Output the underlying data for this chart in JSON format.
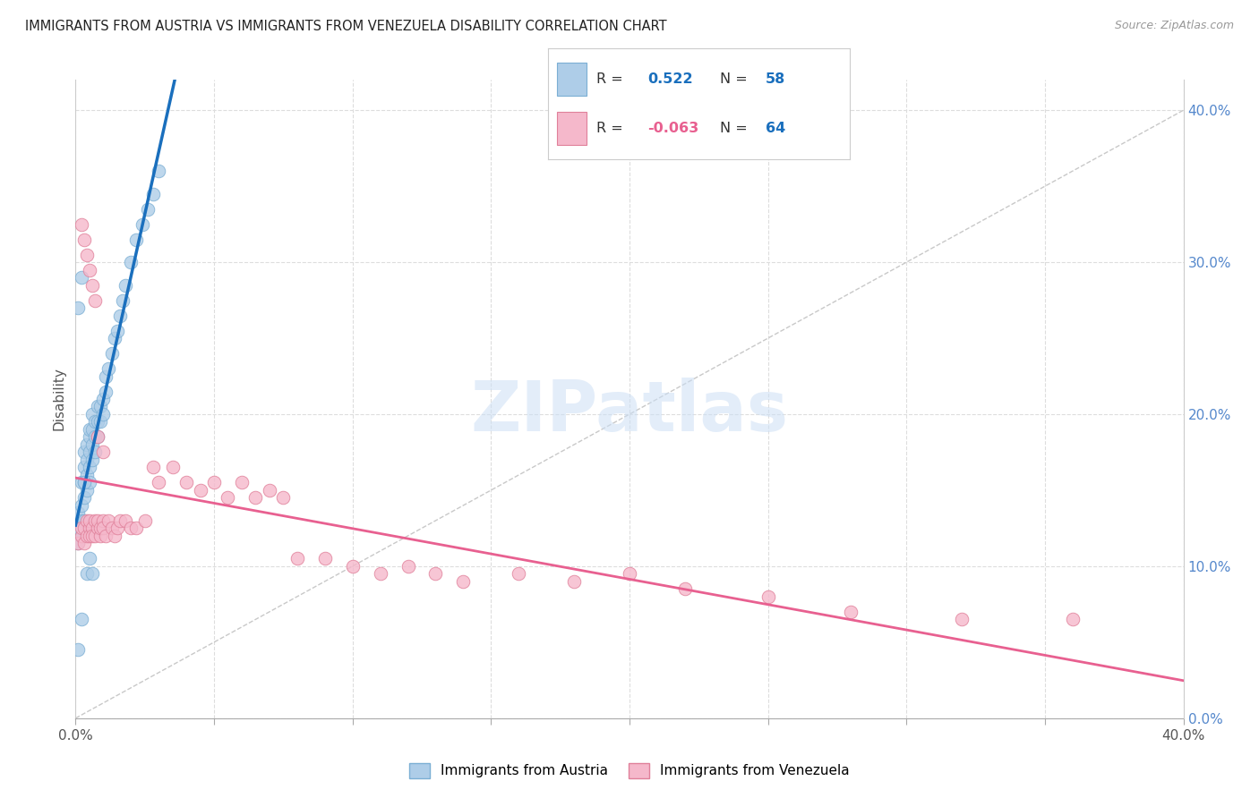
{
  "title": "IMMIGRANTS FROM AUSTRIA VS IMMIGRANTS FROM VENEZUELA DISABILITY CORRELATION CHART",
  "source": "Source: ZipAtlas.com",
  "ylabel": "Disability",
  "xlim": [
    0.0,
    0.4
  ],
  "ylim": [
    0.0,
    0.42
  ],
  "xtick_positions": [
    0.0,
    0.05,
    0.1,
    0.15,
    0.2,
    0.25,
    0.3,
    0.35,
    0.4
  ],
  "xtick_labels": [
    "0.0%",
    "",
    "",
    "",
    "",
    "",
    "",
    "",
    "40.0%"
  ],
  "ytick_right_positions": [
    0.0,
    0.1,
    0.2,
    0.3,
    0.4
  ],
  "ytick_right_labels": [
    "0.0%",
    "10.0%",
    "20.0%",
    "30.0%",
    "40.0%"
  ],
  "austria_R": 0.522,
  "austria_N": 58,
  "venezuela_R": -0.063,
  "venezuela_N": 64,
  "austria_color": "#aecde8",
  "austria_edge": "#7bafd4",
  "venezuela_color": "#f5b8cb",
  "venezuela_edge": "#e0809a",
  "austria_line_color": "#1a6fbd",
  "venezuela_line_color": "#e86090",
  "ref_line_color": "#bbbbbb",
  "background_color": "#ffffff",
  "grid_color": "#dddddd",
  "austria_x": [
    0.001,
    0.001,
    0.001,
    0.002,
    0.002,
    0.002,
    0.002,
    0.003,
    0.003,
    0.003,
    0.003,
    0.003,
    0.004,
    0.004,
    0.004,
    0.004,
    0.005,
    0.005,
    0.005,
    0.005,
    0.005,
    0.006,
    0.006,
    0.006,
    0.006,
    0.007,
    0.007,
    0.007,
    0.008,
    0.008,
    0.008,
    0.009,
    0.009,
    0.01,
    0.01,
    0.011,
    0.011,
    0.012,
    0.013,
    0.014,
    0.015,
    0.016,
    0.017,
    0.018,
    0.02,
    0.022,
    0.024,
    0.026,
    0.028,
    0.03,
    0.001,
    0.002,
    0.003,
    0.004,
    0.005,
    0.006,
    0.002,
    0.001
  ],
  "austria_y": [
    0.115,
    0.125,
    0.135,
    0.12,
    0.13,
    0.14,
    0.155,
    0.13,
    0.145,
    0.155,
    0.165,
    0.175,
    0.15,
    0.16,
    0.17,
    0.18,
    0.155,
    0.165,
    0.175,
    0.185,
    0.19,
    0.17,
    0.18,
    0.19,
    0.2,
    0.175,
    0.185,
    0.195,
    0.185,
    0.195,
    0.205,
    0.195,
    0.205,
    0.2,
    0.21,
    0.215,
    0.225,
    0.23,
    0.24,
    0.25,
    0.255,
    0.265,
    0.275,
    0.285,
    0.3,
    0.315,
    0.325,
    0.335,
    0.345,
    0.36,
    0.27,
    0.29,
    0.155,
    0.095,
    0.105,
    0.095,
    0.065,
    0.045
  ],
  "venezuela_x": [
    0.001,
    0.002,
    0.002,
    0.003,
    0.003,
    0.004,
    0.004,
    0.005,
    0.005,
    0.005,
    0.006,
    0.006,
    0.007,
    0.007,
    0.008,
    0.008,
    0.009,
    0.009,
    0.01,
    0.01,
    0.011,
    0.012,
    0.013,
    0.014,
    0.015,
    0.016,
    0.018,
    0.02,
    0.022,
    0.025,
    0.028,
    0.03,
    0.035,
    0.04,
    0.045,
    0.05,
    0.055,
    0.06,
    0.065,
    0.07,
    0.075,
    0.08,
    0.09,
    0.1,
    0.11,
    0.12,
    0.13,
    0.14,
    0.16,
    0.18,
    0.2,
    0.22,
    0.25,
    0.28,
    0.32,
    0.36,
    0.002,
    0.003,
    0.004,
    0.005,
    0.006,
    0.007,
    0.008,
    0.01
  ],
  "venezuela_y": [
    0.115,
    0.12,
    0.125,
    0.115,
    0.125,
    0.12,
    0.13,
    0.125,
    0.13,
    0.12,
    0.125,
    0.12,
    0.13,
    0.12,
    0.125,
    0.13,
    0.12,
    0.125,
    0.13,
    0.125,
    0.12,
    0.13,
    0.125,
    0.12,
    0.125,
    0.13,
    0.13,
    0.125,
    0.125,
    0.13,
    0.165,
    0.155,
    0.165,
    0.155,
    0.15,
    0.155,
    0.145,
    0.155,
    0.145,
    0.15,
    0.145,
    0.105,
    0.105,
    0.1,
    0.095,
    0.1,
    0.095,
    0.09,
    0.095,
    0.09,
    0.095,
    0.085,
    0.08,
    0.07,
    0.065,
    0.065,
    0.325,
    0.315,
    0.305,
    0.295,
    0.285,
    0.275,
    0.185,
    0.175
  ]
}
